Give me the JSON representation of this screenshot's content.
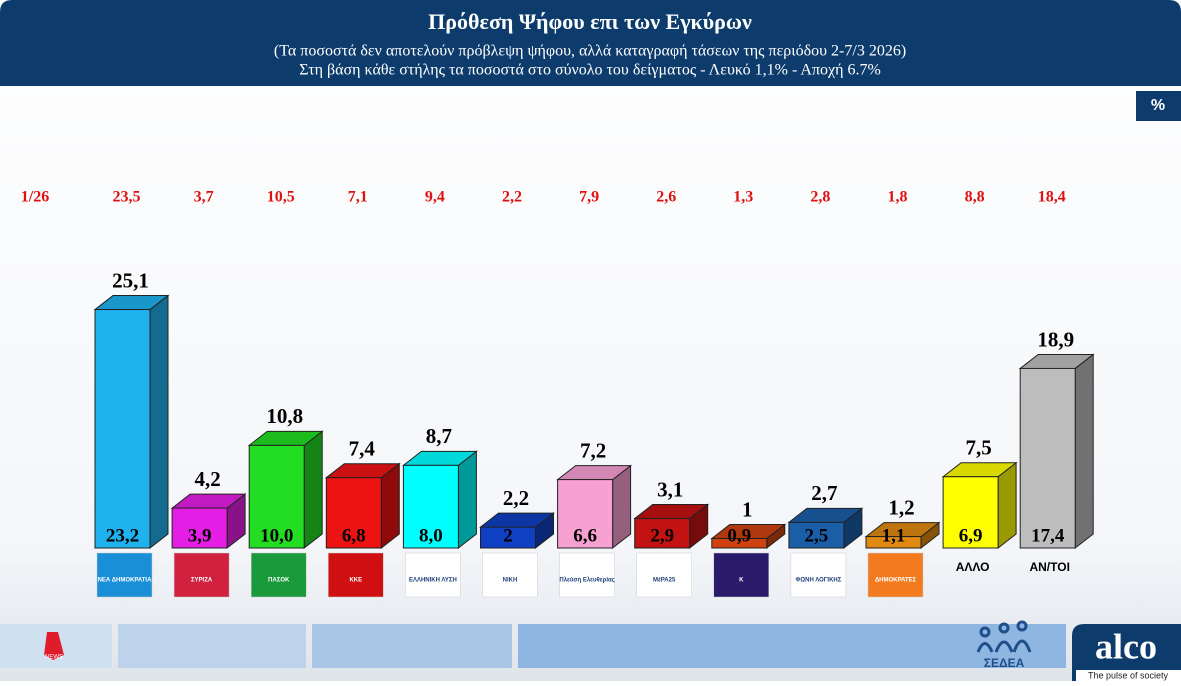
{
  "header": {
    "title": "Πρόθεση Ψήφου επι των Εγκύρων",
    "subtitle": "(Τα ποσοστά δεν αποτελούν πρόβλεψη ψήφου, αλλά καταγραφή τάσεων της περιόδου  2-7/3 2026)",
    "note": "Στη βάση κάθε στήλης τα ποσοστά στο σύνολο του δείγματος - Λευκό 1,1% - Αποχή 6.7%",
    "unit": "%"
  },
  "chart_data": {
    "type": "bar3d",
    "categories": [
      "ΝΕΑ ΔΗΜΟΚΡΑΤΙΑ",
      "ΣΥΡΙΖΑ",
      "ΠΑΣΟΚ",
      "ΚΚΕ",
      "ΕΛΛΗΝΙΚΗ ΛΥΣΗ",
      "ΝΙΚΗ",
      "Πλεύση Ελευθερίας",
      "ΜέΡΑ25",
      "Κ",
      "ΦΩΝΗ ΛΟΓΙΚΗΣ",
      "ΔΗΜΟΚΡΑΤΕΣ",
      "ΑΛΛΟ",
      "ΑΝ/ΤΟΙ"
    ],
    "colors": [
      "#1fb2ee",
      "#e41ee4",
      "#22dd22",
      "#ee1313",
      "#00ffff",
      "#0f3fc2",
      "#f7a0d2",
      "#c31212",
      "#cf4210",
      "#1b5ea8",
      "#e08a12",
      "#ffff00",
      "#bdbdbd"
    ],
    "logo_colors": [
      "#1a8fd8",
      "#d0213f",
      "#1a9a3a",
      "#d01010",
      "#ffffff",
      "#ffffff",
      "#ffffff",
      "#ffffff",
      "#2a1a6a",
      "#ffffff",
      "#f47a20",
      null,
      null
    ],
    "series": [
      {
        "values": [
          25.1,
          4.2,
          10.8,
          7.4,
          8.7,
          2.2,
          7.2,
          3.1,
          1,
          2.7,
          1.2,
          7.5,
          18.9
        ],
        "value_labels": [
          "25,1",
          "4,2",
          "10,8",
          "7,4",
          "8,7",
          "2,2",
          "7,2",
          "3,1",
          "1",
          "2,7",
          "1,2",
          "7,5",
          "18,9"
        ]
      },
      {
        "values": [
          23.2,
          3.9,
          10.0,
          6.8,
          8.0,
          2,
          6.6,
          2.9,
          0.9,
          2.5,
          1.1,
          6.9,
          17.4
        ],
        "value_labels": [
          "23,2",
          "3,9",
          "10,0",
          "6,8",
          "8,0",
          "2",
          "6,6",
          "2,9",
          "0,9",
          "2,5",
          "1,1",
          "6,9",
          "17,4"
        ]
      },
      {
        "name": "1/26",
        "color": "#e01010",
        "values": [
          23.5,
          3.7,
          10.5,
          7.1,
          9.4,
          2.2,
          7.9,
          2.6,
          1.3,
          2.8,
          1.8,
          8.8,
          18.4
        ],
        "value_labels": [
          "23,5",
          "3,7",
          "10,5",
          "7,1",
          "9,4",
          "2,2",
          "7,9",
          "2,6",
          "1,3",
          "2,8",
          "1,8",
          "8,8",
          "18,4"
        ]
      }
    ]
  },
  "footer": {
    "channel": "NEWS",
    "partner": "ΣΕΔΕΑ",
    "brand": "alco",
    "tagline": "The pulse of society"
  }
}
